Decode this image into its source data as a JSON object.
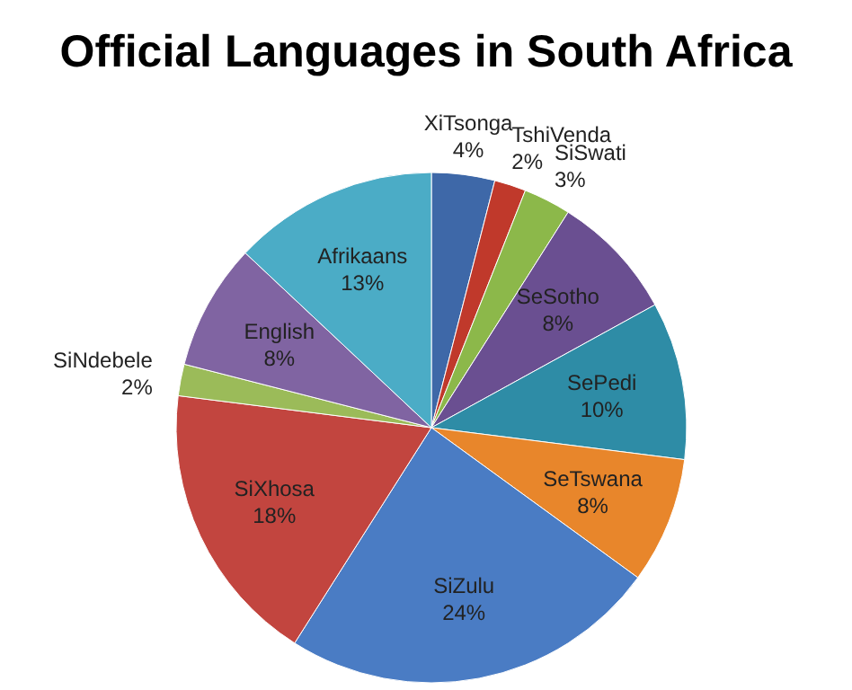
{
  "chart_data": {
    "type": "pie",
    "title": "Official Languages in South Africa",
    "categories": [
      "XiTsonga",
      "TshiVenda",
      "SiSwati",
      "SeSotho",
      "SePedi",
      "SeTswana",
      "SiZulu",
      "SiXhosa",
      "SiNdebele",
      "English",
      "Afrikaans"
    ],
    "values": [
      4,
      2,
      3,
      8,
      10,
      8,
      24,
      18,
      2,
      8,
      13
    ],
    "value_labels": [
      "4%",
      "2%",
      "3%",
      "8%",
      "10%",
      "8%",
      "24%",
      "18%",
      "2%",
      "8%",
      "13%"
    ],
    "colors": [
      "#3e68a8",
      "#c0392b",
      "#8cb84a",
      "#6a4f91",
      "#2e8ca6",
      "#e8862b",
      "#4a7cc4",
      "#c2453f",
      "#9bbb59",
      "#8064a2",
      "#4bacc6"
    ]
  }
}
